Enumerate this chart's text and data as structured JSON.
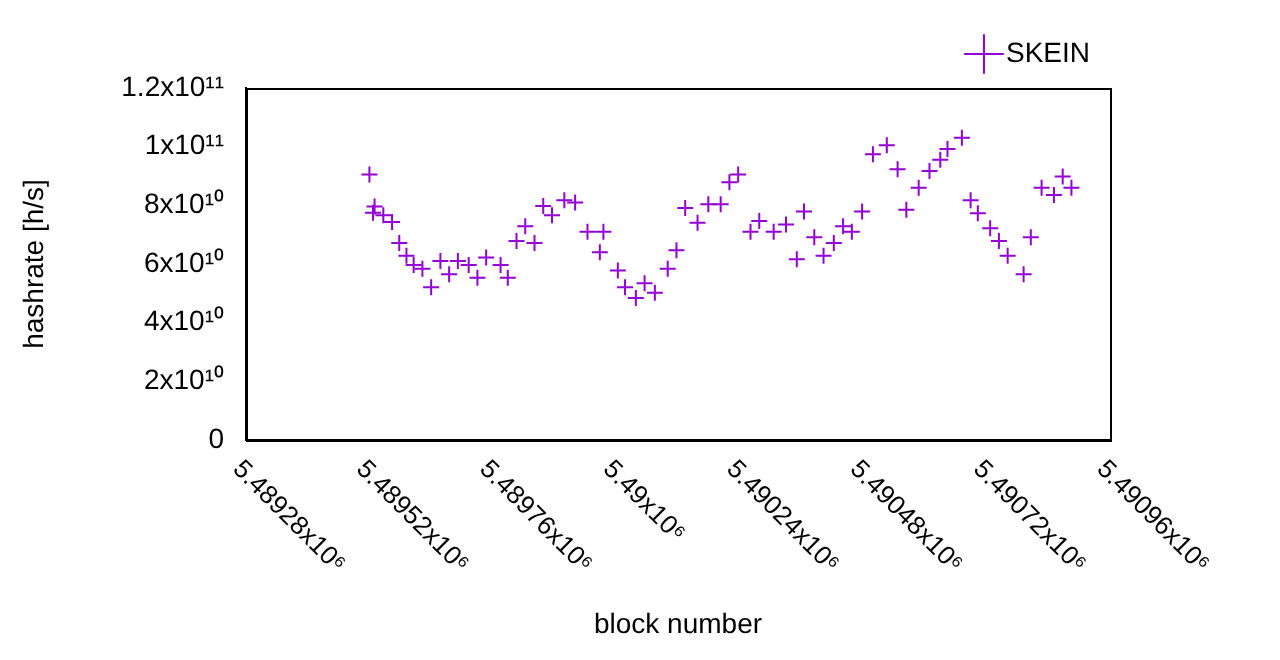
{
  "chart_data": {
    "type": "scatter",
    "xlabel": "block number",
    "ylabel": "hashrate [h/s]",
    "series": [
      {
        "name": "SKEIN",
        "color": "#9400d3",
        "x": [
          5489520,
          5489530,
          5489527,
          5489547,
          5489564,
          5489578,
          5489592,
          5489606,
          5489623,
          5489640,
          5489658,
          5489675,
          5489692,
          5489713,
          5489730,
          5489747,
          5489775,
          5489789,
          5489806,
          5489823,
          5489841,
          5489858,
          5489875,
          5489899,
          5489920,
          5489944,
          5489975,
          5489968,
          5490003,
          5490017,
          5490038,
          5490055,
          5490075,
          5490100,
          5490117,
          5490134,
          5490158,
          5490179,
          5490203,
          5490220,
          5490237,
          5490261,
          5490278,
          5490306,
          5490330,
          5490351,
          5490365,
          5490385,
          5490403,
          5490423,
          5490441,
          5490458,
          5490478,
          5490499,
          5490526,
          5490547,
          5490564,
          5490588,
          5490609,
          5490630,
          5490644,
          5490672,
          5490689,
          5490703,
          5490727,
          5490744,
          5490761,
          5490792,
          5490806,
          5490827,
          5490851,
          5490868,
          5490885
        ],
        "values": [
          90500000000.0,
          79600000000.0,
          77500000000.0,
          76600000000.0,
          74300000000.0,
          67200000000.0,
          62800000000.0,
          59700000000.0,
          58400000000.0,
          52100000000.0,
          61000000000.0,
          56500000000.0,
          61000000000.0,
          59700000000.0,
          55300000000.0,
          62200000000.0,
          59700000000.0,
          55300000000.0,
          67800000000.0,
          72900000000.0,
          67200000000.0,
          79800000000.0,
          76600000000.0,
          81700000000.0,
          81000000000.0,
          71000000000.0,
          71000000000.0,
          64000000000.0,
          57800000000.0,
          52100000000.0,
          48400000000.0,
          53400000000.0,
          50200000000.0,
          58400000000.0,
          64700000000.0,
          79100000000.0,
          74100000000.0,
          80400000000.0,
          80400000000.0,
          87900000000.0,
          90500000000.0,
          71000000000.0,
          74700000000.0,
          71000000000.0,
          73500000000.0,
          61600000000.0,
          77900000000.0,
          69100000000.0,
          62800000000.0,
          67200000000.0,
          72900000000.0,
          71000000000.0,
          77900000000.0,
          97400000000.0,
          100500000000.0,
          92300000000.0,
          78500000000.0,
          86000000000.0,
          91700000000.0,
          95500000000.0,
          99200000000.0,
          103000000000.0,
          81700000000.0,
          77300000000.0,
          72200000000.0,
          67800000000.0,
          62800000000.0,
          56500000000.0,
          69100000000.0,
          86000000000.0,
          83500000000.0,
          89800000000.0,
          86000000000.0
        ]
      }
    ],
    "xlim": [
      5489280,
      5490960
    ],
    "xticks": [
      {
        "value": 5489280,
        "label": "5.48928x10⁶"
      },
      {
        "value": 5489520,
        "label": "5.48952x10⁶"
      },
      {
        "value": 5489760,
        "label": "5.48976x10⁶"
      },
      {
        "value": 5490000,
        "label": "5.49x10⁶"
      },
      {
        "value": 5490240,
        "label": "5.49024x10⁶"
      },
      {
        "value": 5490480,
        "label": "5.49048x10⁶"
      },
      {
        "value": 5490720,
        "label": "5.49072x10⁶"
      },
      {
        "value": 5490960,
        "label": "5.49096x10⁶"
      }
    ],
    "ylim": [
      0,
      120000000000.0
    ],
    "yticks": [
      0,
      {
        "value": 20000000000.0,
        "label": "2x10¹⁰"
      },
      {
        "value": 40000000000.0,
        "label": "4x10¹⁰"
      },
      {
        "value": 60000000000.0,
        "label": "6x10¹⁰"
      },
      {
        "value": 80000000000.0,
        "label": "8x10¹⁰"
      },
      {
        "value": 100000000000.0,
        "label": "1x10¹¹"
      },
      {
        "value": 120000000000.0,
        "label": "1.2x10¹¹"
      }
    ],
    "grid": false,
    "legend": "top right",
    "marker": "cross"
  }
}
